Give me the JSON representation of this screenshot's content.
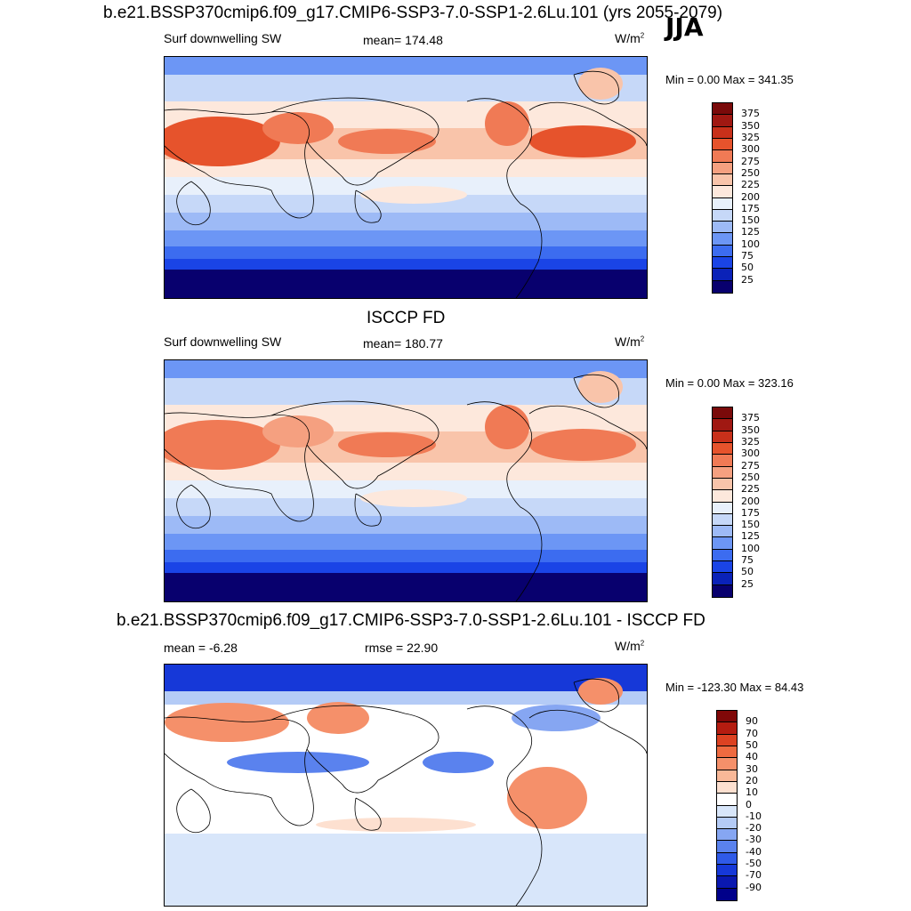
{
  "header": {
    "title": "b.e21.BSSP370cmip6.f09_g17.CMIP6-SSP3-7.0-SSP1-2.6Lu.101 (yrs 2055-2079)",
    "season": "JJA"
  },
  "panels": [
    {
      "title": "",
      "left_label": "Surf downwelling SW",
      "center_label": "mean= 174.48",
      "units": "W/m",
      "units_sup": "2",
      "minmax": "Min =   0.00 Max = 341.35"
    },
    {
      "title": "ISCCP FD",
      "left_label": "Surf downwelling SW",
      "center_label": "mean= 180.77",
      "units": "W/m",
      "units_sup": "2",
      "minmax": "Min =   0.00 Max = 323.16"
    },
    {
      "title": "b.e21.BSSP370cmip6.f09_g17.CMIP6-SSP3-7.0-SSP1-2.6Lu.101 - ISCCP FD",
      "left_label": "mean =  -6.28",
      "center_label": "rmse =  22.90",
      "units": "W/m",
      "units_sup": "2",
      "minmax": "Min = -123.30 Max =  84.43"
    }
  ],
  "chart_data": [
    {
      "type": "heatmap",
      "title": "Surf downwelling SW",
      "units": "W/m2",
      "mean": 174.48,
      "min": 0.0,
      "max": 341.35,
      "colorbar_levels": [
        25,
        50,
        75,
        100,
        125,
        150,
        175,
        200,
        225,
        250,
        275,
        300,
        325,
        350,
        375
      ],
      "colorbar_colors": [
        "#08006e",
        "#0a22b8",
        "#1a44e6",
        "#3c6cf0",
        "#6c96f5",
        "#9dbaf6",
        "#c6d8f8",
        "#e8f0fb",
        "#fde8dc",
        "#f9c4aa",
        "#f5a080",
        "#f07a55",
        "#e6532c",
        "#c8301a",
        "#a01812",
        "#7a0a0a"
      ]
    },
    {
      "type": "heatmap",
      "title": "ISCCP FD",
      "units": "W/m2",
      "mean": 180.77,
      "min": 0.0,
      "max": 323.16,
      "colorbar_levels": [
        25,
        50,
        75,
        100,
        125,
        150,
        175,
        200,
        225,
        250,
        275,
        300,
        325,
        350,
        375
      ],
      "colorbar_colors": [
        "#08006e",
        "#0a22b8",
        "#1a44e6",
        "#3c6cf0",
        "#6c96f5",
        "#9dbaf6",
        "#c6d8f8",
        "#e8f0fb",
        "#fde8dc",
        "#f9c4aa",
        "#f5a080",
        "#f07a55",
        "#e6532c",
        "#c8301a",
        "#a01812",
        "#7a0a0a"
      ]
    },
    {
      "type": "heatmap",
      "title": "b.e21.BSSP370cmip6.f09_g17.CMIP6-SSP3-7.0-SSP1-2.6Lu.101 - ISCCP FD",
      "units": "W/m2",
      "mean": -6.28,
      "rmse": 22.9,
      "min": -123.3,
      "max": 84.43,
      "colorbar_levels": [
        -90,
        -70,
        -50,
        -40,
        -30,
        -20,
        -10,
        0,
        10,
        20,
        30,
        40,
        50,
        70,
        90
      ],
      "colorbar_colors": [
        "#00008a",
        "#0a18b0",
        "#1638d8",
        "#2f5ae8",
        "#5a82ee",
        "#86a6f2",
        "#b4cbf6",
        "#d8e6fa",
        "#ffffff",
        "#fde0d0",
        "#f9b898",
        "#f5906a",
        "#ee6a40",
        "#dc4222",
        "#b41c10",
        "#800808"
      ]
    }
  ]
}
